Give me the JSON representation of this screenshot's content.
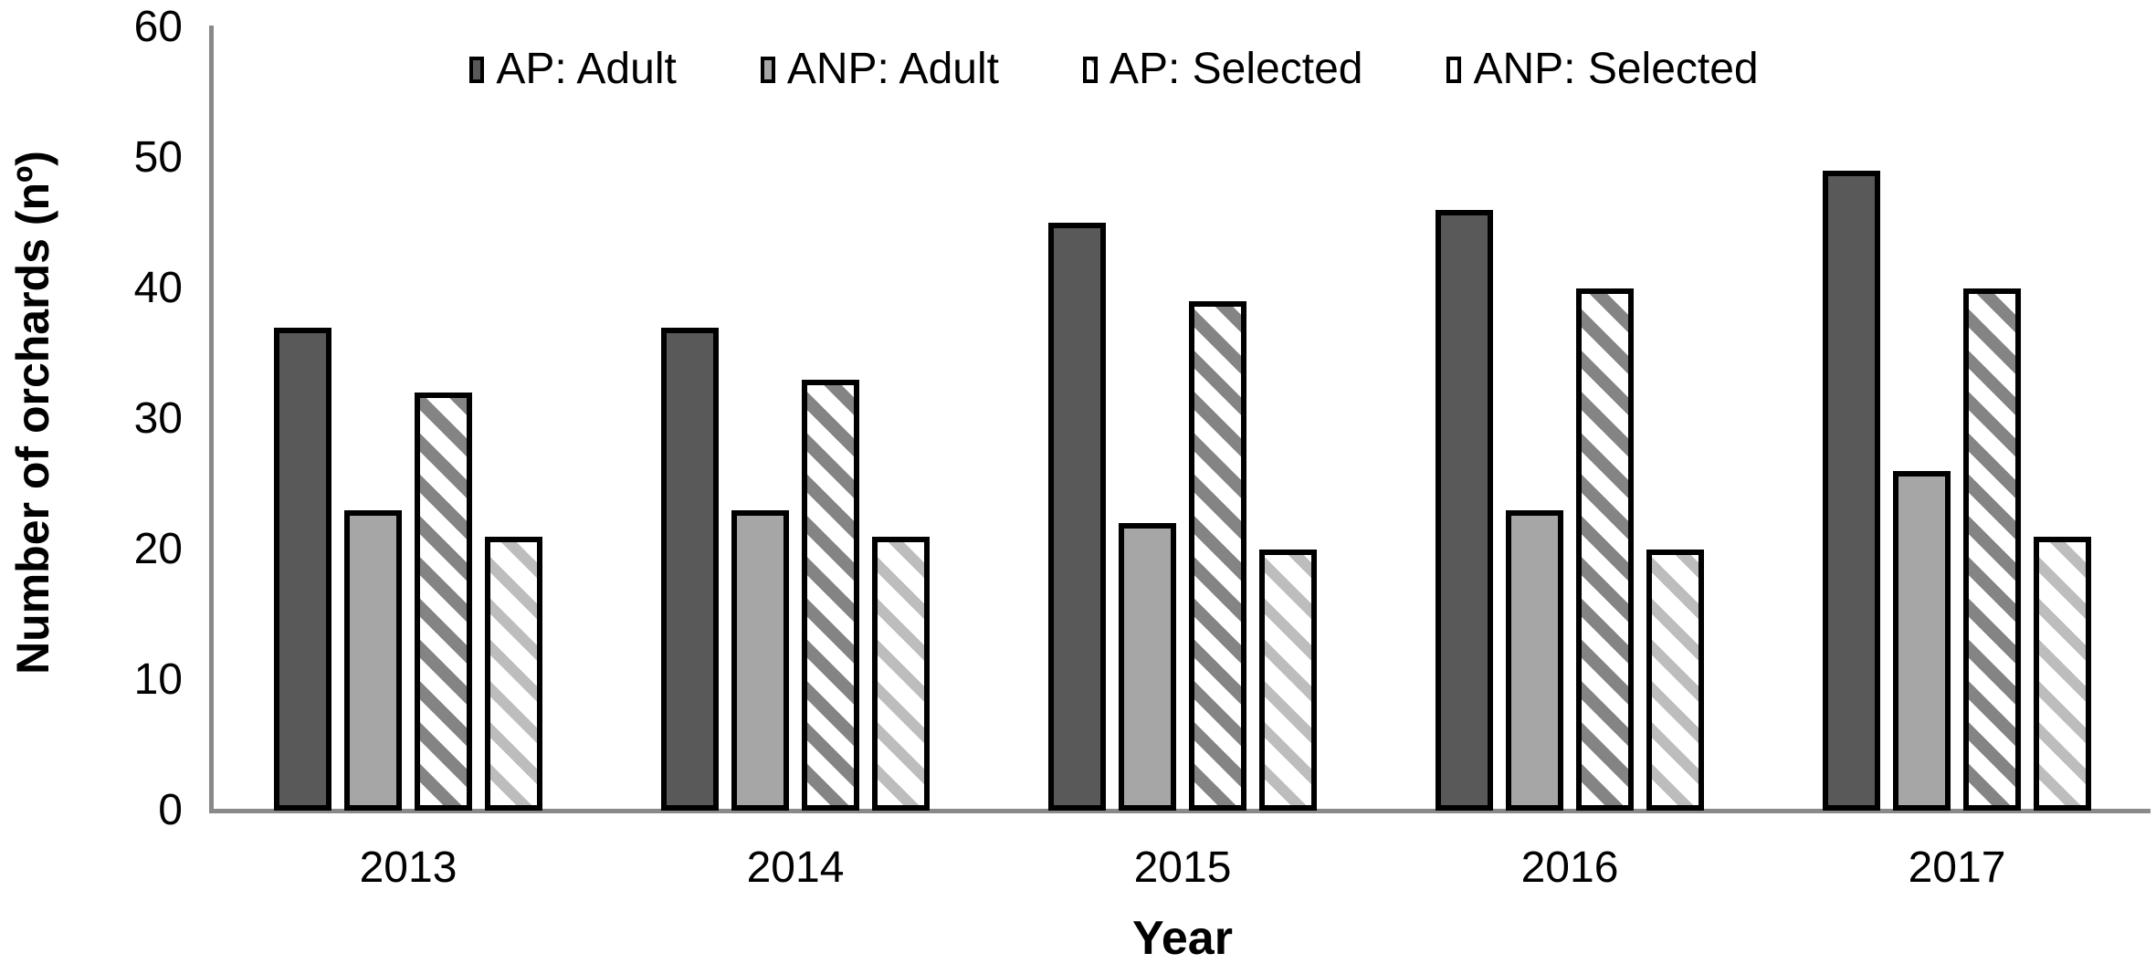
{
  "chart_data": {
    "type": "bar",
    "title": "",
    "xlabel": "Year",
    "ylabel": "Number of orchards (nº)",
    "ylim": [
      0,
      60
    ],
    "yticks": [
      0,
      10,
      20,
      30,
      40,
      50,
      60
    ],
    "grid": false,
    "legend_position": "top",
    "categories": [
      "2013",
      "2014",
      "2015",
      "2016",
      "2017"
    ],
    "series": [
      {
        "name": "AP: Adult",
        "pattern": "solid",
        "color": "#595959",
        "values": [
          37,
          37,
          45,
          46,
          49
        ]
      },
      {
        "name": "ANP: Adult",
        "pattern": "solid",
        "color": "#a6a6a6",
        "values": [
          23,
          23,
          22,
          23,
          26
        ]
      },
      {
        "name": "AP: Selected",
        "pattern": "hatch",
        "color": "#848484",
        "values": [
          32,
          33,
          39,
          40,
          40
        ]
      },
      {
        "name": "ANP: Selected",
        "pattern": "hatch",
        "color": "#bdbdbd",
        "values": [
          21,
          21,
          20,
          20,
          21
        ]
      }
    ]
  },
  "colors": {
    "bar_border": "#000000",
    "axis_line": "#898989",
    "hatch_background": "#ffffff",
    "text": "#000000",
    "background": "#ffffff"
  }
}
